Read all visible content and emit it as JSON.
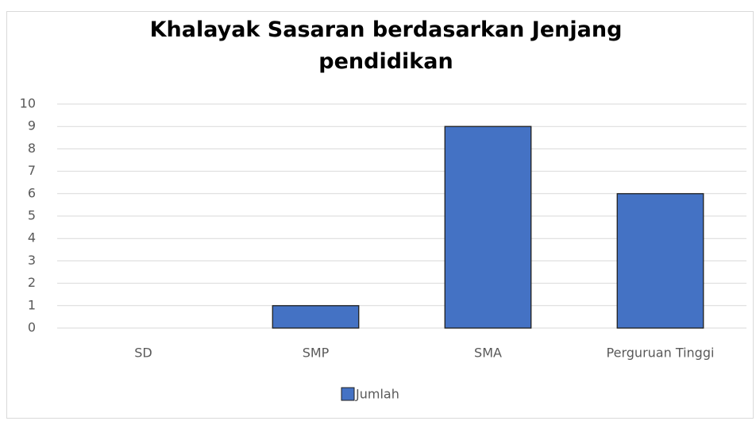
{
  "chart_data": {
    "type": "bar",
    "title": "Khalayak Sasaran berdasarkan Jenjang pendidikan",
    "categories": [
      "SD",
      "SMP",
      "SMA",
      "Perguruan Tinggi"
    ],
    "series": [
      {
        "name": "Jumlah",
        "color": "#4472c4",
        "values": [
          0,
          1,
          9,
          6
        ]
      }
    ],
    "ylim": [
      0,
      10
    ],
    "yticks": [
      0,
      1,
      2,
      3,
      4,
      5,
      6,
      7,
      8,
      9,
      10
    ],
    "grid": true,
    "legend": "bottom"
  }
}
